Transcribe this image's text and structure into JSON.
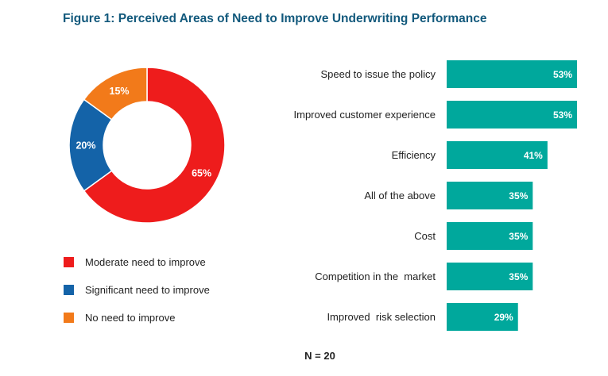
{
  "title": "Figure 1: Perceived Areas of Need to Improve Underwriting Performance",
  "note": "N = 20",
  "chart_data": [
    {
      "type": "pie",
      "slices": [
        {
          "label": "Moderate need to improve",
          "value": 65,
          "display": "65%",
          "color": "#ee1c1c"
        },
        {
          "label": "Significant need to improve",
          "value": 20,
          "display": "20%",
          "color": "#1463a8"
        },
        {
          "label": "No need to improve",
          "value": 15,
          "display": "15%",
          "color": "#f27a1a"
        }
      ],
      "legend_position": "bottom"
    },
    {
      "type": "bar",
      "orientation": "horizontal",
      "categories": [
        "Speed to issue the policy",
        "Improved customer experience",
        "Efficiency",
        "All of the above",
        "Cost",
        "Competition in the  market",
        "Improved  risk selection"
      ],
      "values": [
        53,
        53,
        41,
        35,
        35,
        35,
        29
      ],
      "labels": [
        "53%",
        "53%",
        "41%",
        "35%",
        "35%",
        "35%",
        "29%"
      ],
      "color": "#00a89c",
      "grid": false
    }
  ]
}
